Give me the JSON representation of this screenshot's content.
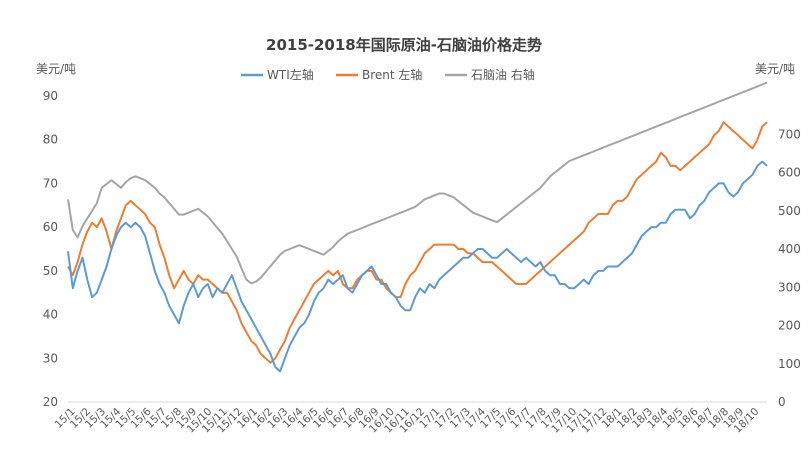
{
  "chart_data": {
    "type": "line",
    "title": "2015-2018年国际原油-石脑油价格走势",
    "y_left_unit": "美元/吨",
    "y_right_unit": "美元/吨",
    "y_left_ticks": [
      "20",
      "30",
      "40",
      "50",
      "60",
      "70",
      "80",
      "90"
    ],
    "y_right_ticks": [
      "0",
      "100",
      "200",
      "300",
      "400",
      "500",
      "600",
      "700"
    ],
    "ylim_left": [
      20,
      90
    ],
    "ylim_right": [
      0,
      800
    ],
    "grid": false,
    "legend_position": "top",
    "x_labels": [
      "15/1",
      "15/2",
      "15/3",
      "15/4",
      "15/5",
      "15/6",
      "15/7",
      "15/8",
      "15/9",
      "15/10",
      "15/11",
      "15/12",
      "16/1",
      "16/2",
      "16/3",
      "16/4",
      "16/5",
      "16/6",
      "16/7",
      "16/8",
      "16/9",
      "16/10",
      "16/11",
      "16/12",
      "17/1",
      "17/2",
      "17/3",
      "17/4",
      "17/5",
      "17/6",
      "17/7",
      "17/8",
      "17/9",
      "17/10",
      "17/11",
      "17/12",
      "18/1",
      "18/2",
      "18/3",
      "18/4",
      "18/5",
      "18/6",
      "18/7",
      "18/8",
      "18/9",
      "18/10"
    ],
    "series": [
      {
        "name": "WTI左轴",
        "axis": "left",
        "color": "#5B9BD5",
        "values": [
          54.5,
          46,
          50,
          53,
          48,
          44,
          45,
          48,
          51,
          55,
          58,
          60,
          61,
          60,
          61,
          60,
          58,
          54,
          50,
          47,
          45,
          42,
          40,
          38,
          42,
          45,
          47,
          44,
          46,
          47,
          44,
          46,
          45,
          47,
          49,
          46,
          43,
          41,
          39,
          37,
          35,
          33,
          31,
          28,
          27,
          30,
          33,
          35,
          37,
          38,
          40,
          43,
          45,
          46,
          48,
          47,
          48,
          49,
          46,
          45,
          47,
          49,
          50,
          51,
          49,
          47,
          47,
          45,
          44,
          42,
          41,
          41,
          44,
          46,
          45,
          47,
          46,
          48,
          49,
          50,
          51,
          52,
          53,
          53,
          54,
          55,
          55,
          54,
          53,
          53,
          54,
          55,
          54,
          53,
          52,
          53,
          52,
          51,
          52,
          50,
          49,
          49,
          47,
          47,
          46,
          46,
          47,
          48,
          47,
          49,
          50,
          50,
          51,
          51,
          51,
          52,
          53,
          54,
          56,
          58,
          59,
          60,
          60,
          61,
          61,
          63,
          64,
          64,
          64,
          62,
          63,
          65,
          66,
          68,
          69,
          70,
          70,
          68,
          67,
          68,
          70,
          71,
          72,
          74,
          75,
          74
        ]
      },
      {
        "name": "Brent 左轴",
        "axis": "left",
        "color": "#ED7D31",
        "values": [
          51,
          49,
          52,
          56,
          59,
          61,
          60,
          62,
          59,
          55,
          59,
          62,
          65,
          66,
          65,
          64,
          63,
          61,
          60,
          56,
          53,
          49,
          46,
          48,
          50,
          48,
          47,
          49,
          48,
          48,
          47,
          46,
          45,
          45,
          43,
          41,
          38,
          36,
          34,
          33,
          31,
          30,
          29,
          30,
          32,
          34,
          37,
          39,
          41,
          43,
          45,
          47,
          48,
          49,
          50,
          49,
          50,
          47,
          46,
          46,
          48,
          49,
          50,
          50,
          48,
          48,
          46,
          45,
          44,
          44,
          47,
          49,
          50,
          52,
          54,
          55,
          56,
          56,
          56,
          56,
          56,
          55,
          55,
          54,
          54,
          53,
          52,
          52,
          52,
          51,
          50,
          49,
          48,
          47,
          47,
          47,
          48,
          49,
          50,
          51,
          52,
          53,
          54,
          55,
          56,
          57,
          58,
          59,
          61,
          62,
          63,
          63,
          63,
          65,
          66,
          66,
          67,
          69,
          71,
          72,
          73,
          74,
          75,
          77,
          76,
          74,
          74,
          73,
          74,
          75,
          76,
          77,
          78,
          79,
          81,
          82,
          84,
          83,
          82,
          81,
          80,
          79,
          78,
          80,
          83,
          84
        ]
      },
      {
        "name": "石脑油 右轴",
        "axis": "right",
        "color": "#A5A5A5",
        "values": [
          530,
          450,
          430,
          460,
          480,
          500,
          520,
          560,
          570,
          580,
          570,
          560,
          575,
          585,
          590,
          585,
          580,
          570,
          560,
          545,
          535,
          520,
          505,
          490,
          490,
          495,
          500,
          505,
          495,
          485,
          470,
          455,
          440,
          420,
          400,
          380,
          350,
          320,
          310,
          315,
          325,
          340,
          355,
          370,
          385,
          395,
          400,
          405,
          410,
          405,
          400,
          395,
          390,
          385,
          395,
          405,
          420,
          430,
          440,
          445,
          450,
          455,
          460,
          465,
          470,
          475,
          480,
          485,
          490,
          495,
          500,
          505,
          510,
          520,
          530,
          535,
          540,
          545,
          545,
          540,
          535,
          525,
          515,
          505,
          495,
          490,
          485,
          480,
          475,
          470,
          480,
          490,
          500,
          510,
          520,
          530,
          540,
          550,
          560,
          575,
          590,
          600,
          610,
          620,
          630,
          635,
          640,
          645,
          650,
          655,
          660,
          665,
          670,
          675,
          680,
          685,
          690,
          695,
          700,
          705,
          710,
          715,
          720,
          725,
          730,
          735,
          740,
          745,
          750,
          755,
          760,
          765,
          770,
          775,
          780,
          785,
          790,
          795,
          800,
          805,
          810,
          815,
          820,
          825,
          830,
          835
        ]
      }
    ]
  }
}
